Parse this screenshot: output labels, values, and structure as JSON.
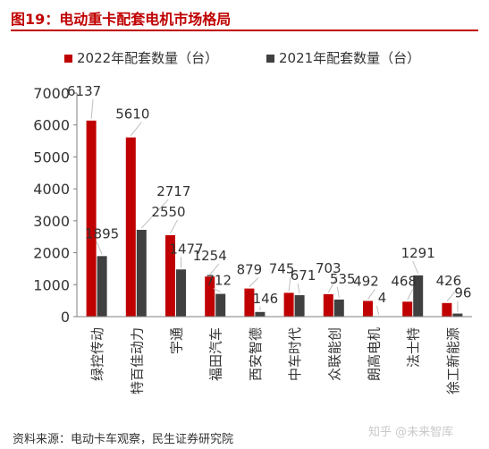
{
  "header": {
    "title": "图19：电动重卡配套电机市场格局"
  },
  "footer": {
    "source": "资料来源：电动卡车观察，民生证券研究院",
    "watermark": "知乎 @未来智库"
  },
  "colors": {
    "series_2022": "#c00000",
    "series_2021": "#404040",
    "accent": "#c00000"
  },
  "chart_data": {
    "type": "bar",
    "title": "",
    "xlabel": "",
    "ylabel": "",
    "ylim": [
      0,
      7000
    ],
    "yticks": [
      0,
      1000,
      2000,
      3000,
      4000,
      5000,
      6000,
      7000
    ],
    "grid": false,
    "legend_position": "top",
    "categories": [
      "绿控传动",
      "特百佳动力",
      "宇通",
      "福田汽车",
      "西安智德",
      "中车时代",
      "众联能创",
      "朗高电机",
      "法士特",
      "徐工新能源"
    ],
    "series": [
      {
        "name": "2022年配套数量（台）",
        "values": [
          6137,
          5610,
          2550,
          1254,
          879,
          745,
          703,
          492,
          468,
          426
        ]
      },
      {
        "name": "2021年配套数量（台）",
        "values": [
          1895,
          2717,
          1477,
          712,
          146,
          671,
          535,
          4,
          1291,
          96
        ]
      }
    ]
  }
}
